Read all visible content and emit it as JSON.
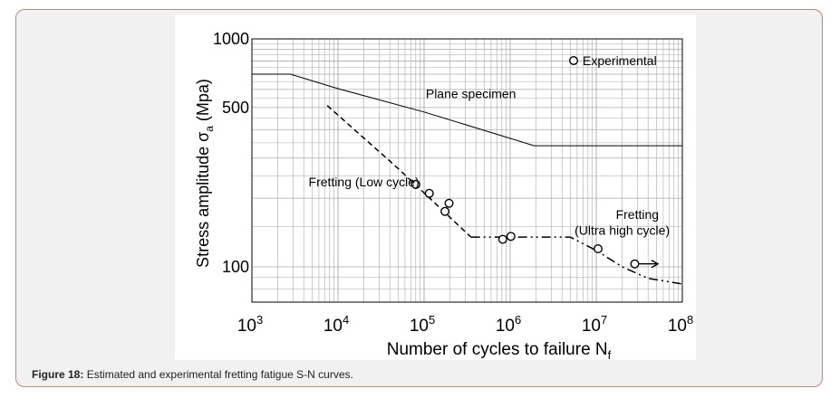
{
  "figure": {
    "caption_label": "Figure 18:",
    "caption_text": " Estimated and experimental fretting fatigue S-N curves."
  },
  "colors": {
    "frame_border": "#b98b79",
    "frame_background": "#f1f1f1",
    "grid": "#aaaaaa",
    "line": "#000000"
  },
  "chart_data": {
    "type": "line",
    "scale": "log-log",
    "grid": true,
    "xlabel": "Number of cycles to failure  N",
    "xlabel_subscript": "f",
    "ylabel": "Stress amplitude   σ",
    "ylabel_subscript": "a",
    "ylabel_unit": "(Mpa)",
    "xlim": [
      1000,
      100000000
    ],
    "ylim": [
      70,
      1000
    ],
    "x_ticks": [
      {
        "value": 1000,
        "base": "10",
        "exp": "3"
      },
      {
        "value": 10000,
        "base": "10",
        "exp": "4"
      },
      {
        "value": 100000,
        "base": "10",
        "exp": "5"
      },
      {
        "value": 1000000,
        "base": "10",
        "exp": "6"
      },
      {
        "value": 10000000,
        "base": "10",
        "exp": "7"
      },
      {
        "value": 100000000,
        "base": "10",
        "exp": "8"
      }
    ],
    "y_ticks": [
      {
        "value": 1000,
        "label": "1000"
      },
      {
        "value": 500,
        "label": "500"
      },
      {
        "value": 100,
        "label": "100"
      }
    ],
    "legend": {
      "position": "top-right",
      "label": "Experimental"
    },
    "series": [
      {
        "name": "Plane specimen",
        "style": "solid",
        "points": [
          [
            1000,
            700
          ],
          [
            2800,
            700
          ],
          [
            10000,
            605
          ],
          [
            100000,
            478
          ],
          [
            1900000,
            340
          ],
          [
            100000000,
            340
          ]
        ]
      },
      {
        "name": "Fretting (Low cycle)",
        "style": "dashed",
        "points": [
          [
            7500,
            510
          ],
          [
            50000,
            270
          ],
          [
            350000,
            135
          ]
        ]
      },
      {
        "name": "Fretting (Ultra high cycle)",
        "style": "dash-dot",
        "points": [
          [
            350000,
            135
          ],
          [
            5000000,
            135
          ],
          [
            10000000,
            118
          ],
          [
            20000000,
            100
          ],
          [
            40000000,
            89
          ],
          [
            100000000,
            84
          ]
        ]
      },
      {
        "name": "Experimental",
        "style": "markers",
        "points": [
          [
            80000,
            230
          ],
          [
            115000,
            210
          ],
          [
            175000,
            175
          ],
          [
            195000,
            190
          ],
          [
            820000,
            132
          ],
          [
            1020000,
            136
          ],
          [
            10500000,
            120
          ],
          [
            28000000,
            103
          ]
        ]
      }
    ],
    "annotations": [
      {
        "text": "Plane specimen",
        "x": 350000,
        "y": 550
      },
      {
        "text": "Fretting (Low cycle)",
        "x": 20000,
        "y": 225
      },
      {
        "text": "Fretting",
        "x": 30000000,
        "y": 162
      },
      {
        "text": "(Ultra high cycle)",
        "x": 20000000,
        "y": 138
      }
    ],
    "runout_arrow": {
      "from": [
        28000000,
        103
      ],
      "to": [
        52000000,
        103
      ]
    }
  }
}
